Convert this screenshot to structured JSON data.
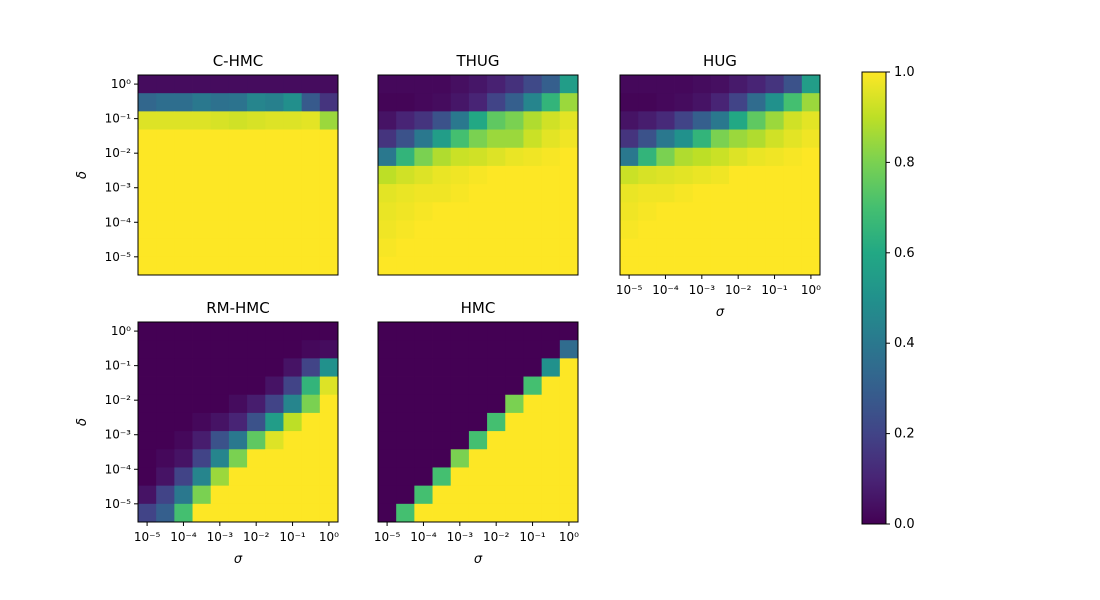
{
  "chart_data": {
    "type": "heatmap",
    "x_axis": {
      "label": "σ",
      "scale": "log",
      "tick_labels": [
        "10⁻⁵",
        "10⁻⁴",
        "10⁻³",
        "10⁻²",
        "10⁻¹",
        "10⁰"
      ]
    },
    "y_axis": {
      "label": "δ",
      "scale": "log",
      "tick_labels": [
        "10⁰",
        "10⁻¹",
        "10⁻²",
        "10⁻³",
        "10⁻⁴",
        "10⁻⁵"
      ]
    },
    "colorbar": {
      "colormap": "viridis",
      "range": [
        0,
        1
      ],
      "tick_labels": [
        "0.0",
        "0.2",
        "0.4",
        "0.6",
        "0.8",
        "1.0"
      ]
    },
    "panels": [
      {
        "title": "C-HMC",
        "values": [
          [
            0.03,
            0.03,
            0.03,
            0.03,
            0.03,
            0.03,
            0.03,
            0.03,
            0.03,
            0.03,
            0.03
          ],
          [
            0.33,
            0.36,
            0.36,
            0.4,
            0.37,
            0.38,
            0.45,
            0.43,
            0.49,
            0.28,
            0.15
          ],
          [
            0.95,
            0.95,
            0.95,
            0.95,
            0.94,
            0.93,
            0.94,
            0.95,
            0.95,
            0.96,
            0.85
          ],
          [
            1,
            1,
            1,
            1,
            1,
            1,
            1,
            1,
            1,
            1,
            1
          ],
          [
            1,
            1,
            1,
            1,
            1,
            1,
            1,
            1,
            1,
            1,
            1
          ],
          [
            1,
            1,
            1,
            1,
            1,
            1,
            1,
            1,
            1,
            1,
            1
          ],
          [
            1,
            1,
            1,
            1,
            1,
            1,
            1,
            1,
            1,
            1,
            1
          ],
          [
            1,
            1,
            1,
            1,
            1,
            1,
            1,
            1,
            1,
            1,
            1
          ],
          [
            1,
            1,
            1,
            1,
            1,
            1,
            1,
            1,
            1,
            1,
            1
          ],
          [
            1,
            1,
            1,
            1,
            1,
            1,
            1,
            1,
            1,
            1,
            1
          ],
          [
            1,
            1,
            1,
            1,
            1,
            1,
            1,
            1,
            1,
            1,
            1
          ]
        ]
      },
      {
        "title": "THUG",
        "values": [
          [
            0.02,
            0.02,
            0.02,
            0.02,
            0.04,
            0.06,
            0.09,
            0.14,
            0.22,
            0.3,
            0.55
          ],
          [
            0.01,
            0.01,
            0.02,
            0.03,
            0.06,
            0.1,
            0.2,
            0.3,
            0.45,
            0.65,
            0.85
          ],
          [
            0.05,
            0.1,
            0.15,
            0.25,
            0.4,
            0.6,
            0.75,
            0.8,
            0.88,
            0.93,
            0.96
          ],
          [
            0.15,
            0.25,
            0.4,
            0.55,
            0.7,
            0.8,
            0.85,
            0.85,
            0.92,
            0.96,
            0.98
          ],
          [
            0.4,
            0.65,
            0.8,
            0.88,
            0.92,
            0.93,
            0.95,
            0.97,
            0.98,
            0.99,
            1
          ],
          [
            0.9,
            0.93,
            0.95,
            0.97,
            0.98,
            0.99,
            1,
            1,
            1,
            1,
            1
          ],
          [
            0.96,
            0.97,
            0.98,
            0.98,
            0.99,
            1,
            1,
            1,
            1,
            1,
            1
          ],
          [
            0.97,
            0.98,
            0.99,
            1,
            1,
            1,
            1,
            1,
            1,
            1,
            1
          ],
          [
            0.98,
            0.99,
            1,
            1,
            1,
            1,
            1,
            1,
            1,
            1,
            1
          ],
          [
            0.99,
            1,
            1,
            1,
            1,
            1,
            1,
            1,
            1,
            1,
            1
          ],
          [
            1,
            1,
            1,
            1,
            1,
            1,
            1,
            1,
            1,
            1,
            1
          ]
        ]
      },
      {
        "title": "HUG",
        "values": [
          [
            0.02,
            0.02,
            0.02,
            0.02,
            0.03,
            0.04,
            0.07,
            0.1,
            0.15,
            0.25,
            0.55
          ],
          [
            0.01,
            0.01,
            0.02,
            0.03,
            0.05,
            0.1,
            0.2,
            0.35,
            0.5,
            0.7,
            0.85
          ],
          [
            0.05,
            0.08,
            0.12,
            0.2,
            0.3,
            0.4,
            0.6,
            0.75,
            0.85,
            0.93,
            0.96
          ],
          [
            0.15,
            0.25,
            0.4,
            0.5,
            0.65,
            0.8,
            0.85,
            0.88,
            0.93,
            0.96,
            0.98
          ],
          [
            0.4,
            0.65,
            0.8,
            0.88,
            0.9,
            0.92,
            0.95,
            0.97,
            0.98,
            0.99,
            1
          ],
          [
            0.92,
            0.94,
            0.95,
            0.96,
            0.97,
            0.98,
            1,
            1,
            1,
            1,
            1
          ],
          [
            0.97,
            0.98,
            0.98,
            0.99,
            1,
            1,
            1,
            1,
            1,
            1,
            1
          ],
          [
            0.98,
            0.99,
            1,
            1,
            1,
            1,
            1,
            1,
            1,
            1,
            1
          ],
          [
            0.99,
            1,
            1,
            1,
            1,
            1,
            1,
            1,
            1,
            1,
            1
          ],
          [
            1,
            1,
            1,
            1,
            1,
            1,
            1,
            1,
            1,
            1,
            1
          ],
          [
            1,
            1,
            1,
            1,
            1,
            1,
            1,
            1,
            1,
            1,
            1
          ]
        ]
      },
      {
        "title": "RM-HMC",
        "values": [
          [
            0,
            0,
            0,
            0,
            0,
            0,
            0,
            0,
            0,
            0,
            0
          ],
          [
            0,
            0,
            0,
            0,
            0,
            0,
            0,
            0,
            0,
            0.02,
            0.03
          ],
          [
            0,
            0,
            0,
            0,
            0,
            0,
            0,
            0,
            0.05,
            0.2,
            0.5
          ],
          [
            0,
            0,
            0,
            0,
            0,
            0,
            0,
            0.05,
            0.2,
            0.65,
            0.95
          ],
          [
            0,
            0,
            0,
            0,
            0,
            0.03,
            0.08,
            0.2,
            0.45,
            0.8,
            1
          ],
          [
            0,
            0,
            0,
            0.02,
            0.05,
            0.1,
            0.25,
            0.55,
            0.9,
            1,
            1
          ],
          [
            0,
            0,
            0.02,
            0.08,
            0.25,
            0.4,
            0.75,
            0.95,
            1,
            1,
            1
          ],
          [
            0,
            0.02,
            0.05,
            0.2,
            0.45,
            0.8,
            1,
            1,
            1,
            1,
            1
          ],
          [
            0,
            0.05,
            0.2,
            0.45,
            0.85,
            1,
            1,
            1,
            1,
            1,
            1
          ],
          [
            0.05,
            0.2,
            0.4,
            0.8,
            1,
            1,
            1,
            1,
            1,
            1,
            1
          ],
          [
            0.2,
            0.3,
            0.7,
            1,
            1,
            1,
            1,
            1,
            1,
            1,
            1
          ]
        ]
      },
      {
        "title": "HMC",
        "values": [
          [
            0,
            0,
            0,
            0,
            0,
            0,
            0,
            0,
            0,
            0,
            0
          ],
          [
            0,
            0,
            0,
            0,
            0,
            0,
            0,
            0,
            0,
            0,
            0.35
          ],
          [
            0,
            0,
            0,
            0,
            0,
            0,
            0,
            0,
            0,
            0.5,
            1
          ],
          [
            0,
            0,
            0,
            0,
            0,
            0,
            0,
            0,
            0.7,
            1,
            1
          ],
          [
            0,
            0,
            0,
            0,
            0,
            0,
            0,
            0.8,
            1,
            1,
            1
          ],
          [
            0,
            0,
            0,
            0,
            0,
            0,
            0.7,
            1,
            1,
            1,
            1
          ],
          [
            0,
            0,
            0,
            0,
            0,
            0.7,
            1,
            1,
            1,
            1,
            1
          ],
          [
            0,
            0,
            0,
            0,
            0.8,
            1,
            1,
            1,
            1,
            1,
            1
          ],
          [
            0,
            0,
            0,
            0.7,
            1,
            1,
            1,
            1,
            1,
            1,
            1
          ],
          [
            0,
            0,
            0.7,
            1,
            1,
            1,
            1,
            1,
            1,
            1,
            1
          ],
          [
            0,
            0.7,
            1,
            1,
            1,
            1,
            1,
            1,
            1,
            1,
            1
          ]
        ]
      }
    ]
  }
}
